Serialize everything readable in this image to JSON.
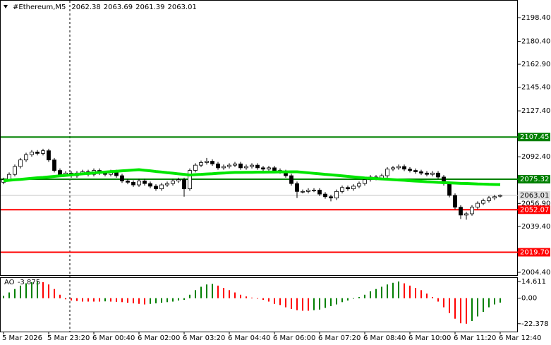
{
  "chart_data": {
    "type": "candlestick",
    "symbol": "#Ethereum,M5",
    "categories": [
      "5 Mar 2026",
      null,
      null,
      null,
      null,
      null,
      null,
      null,
      "5 Mar 23:20",
      null,
      null,
      null,
      null,
      null,
      null,
      null,
      "6 Mar 00:40",
      null,
      null,
      null,
      null,
      null,
      null,
      null,
      "6 Mar 02:00",
      null,
      null,
      null,
      null,
      null,
      null,
      null,
      "6 Mar 03:20",
      null,
      null,
      null,
      null,
      null,
      null,
      null,
      "6 Mar 04:40",
      null,
      null,
      null,
      null,
      null,
      null,
      null,
      "6 Mar 06:00",
      null,
      null,
      null,
      null,
      null,
      null,
      null,
      "6 Mar 07:20",
      null,
      null,
      null,
      null,
      null,
      null,
      null,
      "6 Mar 08:40",
      null,
      null,
      null,
      null,
      null,
      null,
      null,
      "6 Mar 10:00",
      null,
      null,
      null,
      null,
      null,
      null,
      null,
      "6 Mar 11:20",
      null,
      null,
      null,
      null,
      null,
      null,
      null,
      "6 Mar 12:40"
    ],
    "open": [
      2073,
      2075,
      2079,
      2085,
      2090,
      2094,
      2096,
      2095,
      2097,
      2090,
      2082,
      2079,
      2080,
      2078,
      2080,
      2081,
      2079,
      2082,
      2080,
      2079,
      2081,
      2078,
      2074,
      2073,
      2071,
      2074,
      2072,
      2070,
      2068,
      2071,
      2072,
      2074,
      2075,
      2068,
      2082,
      2086,
      2088,
      2089,
      2087,
      2084,
      2085,
      2086,
      2087,
      2084,
      2085,
      2086,
      2084,
      2083,
      2084,
      2082,
      2081,
      2078,
      2072,
      2066,
      2066,
      2067,
      2067,
      2064,
      2062,
      2061,
      2066,
      2069,
      2068,
      2070,
      2072,
      2075,
      2077,
      2076,
      2078,
      2083,
      2084,
      2085,
      2083,
      2082,
      2081,
      2080,
      2079,
      2080,
      2077,
      2072,
      2063,
      2054,
      2048,
      2049,
      2054,
      2057,
      2059,
      2061,
      2062.38
    ],
    "high": [
      2076.5,
      2080.5,
      2086.5,
      2091.5,
      2095.5,
      2097.5,
      2097.5,
      2098.5,
      2098.5,
      2091.5,
      2083.5,
      2081.5,
      2081.5,
      2081.5,
      2082.5,
      2082.5,
      2083.5,
      2083.5,
      2081.5,
      2082.5,
      2082.5,
      2079.5,
      2075.5,
      2074.5,
      2075.5,
      2075.5,
      2073.5,
      2071.5,
      2072.5,
      2073.5,
      2075.5,
      2076.5,
      2076.5,
      2083.5,
      2087.5,
      2089.5,
      2091.5,
      2090.5,
      2088.5,
      2086.5,
      2087.5,
      2088.5,
      2088.5,
      2086.5,
      2087.5,
      2087.5,
      2085.5,
      2085.5,
      2085.5,
      2083.5,
      2082.5,
      2079.5,
      2073.5,
      2067.5,
      2068.5,
      2068.5,
      2068.5,
      2065.5,
      2063.5,
      2067.5,
      2070.5,
      2070.5,
      2071.5,
      2073.5,
      2076.5,
      2078.5,
      2078.5,
      2079.5,
      2084.5,
      2085.5,
      2086.5,
      2086.5,
      2084.5,
      2083.5,
      2082.5,
      2081.5,
      2081.5,
      2081.5,
      2078.5,
      2073.5,
      2064.5,
      2055.5,
      2050.5,
      2055.5,
      2058.5,
      2060.5,
      2062.5,
      2063.5,
      2063.69
    ],
    "low": [
      2071.5,
      2073.5,
      2077.5,
      2083.5,
      2088.5,
      2092.5,
      2093.5,
      2093.5,
      2088.5,
      2080.5,
      2077.5,
      2077.5,
      2076.5,
      2076.5,
      2078.5,
      2077.5,
      2077.5,
      2078.5,
      2077.5,
      2077.5,
      2076.5,
      2072.5,
      2071.5,
      2069.5,
      2069.5,
      2070.5,
      2068.5,
      2066.5,
      2066.5,
      2069.5,
      2070.5,
      2072.5,
      2062,
      2066.5,
      2080.5,
      2084.5,
      2086.5,
      2085.5,
      2082.5,
      2082.5,
      2083.5,
      2084.5,
      2082.5,
      2082.5,
      2083.5,
      2082.5,
      2081.5,
      2081.5,
      2080.5,
      2079.5,
      2076.5,
      2070.5,
      2061,
      2064.5,
      2064.5,
      2065.5,
      2062.5,
      2060.5,
      2058.5,
      2059.5,
      2064.5,
      2066.5,
      2066.5,
      2068.5,
      2070.5,
      2073.5,
      2074.5,
      2074.5,
      2076.5,
      2081.5,
      2082.5,
      2081.5,
      2080.5,
      2079.5,
      2078.5,
      2077.5,
      2077.5,
      2075.5,
      2070.5,
      2061.5,
      2052.5,
      2045,
      2044.5,
      2047.5,
      2052.5,
      2055.5,
      2057.5,
      2059.5,
      2061.39
    ],
    "close": [
      2075,
      2079,
      2085,
      2090,
      2094,
      2096,
      2095,
      2097,
      2090,
      2082,
      2079,
      2080,
      2078,
      2080,
      2081,
      2079,
      2082,
      2080,
      2079,
      2081,
      2078,
      2074,
      2073,
      2071,
      2074,
      2072,
      2070,
      2068,
      2071,
      2072,
      2074,
      2075,
      2068,
      2082,
      2086,
      2088,
      2089,
      2087,
      2084,
      2085,
      2086,
      2087,
      2084,
      2085,
      2086,
      2084,
      2083,
      2084,
      2082,
      2081,
      2078,
      2072,
      2066,
      2066,
      2067,
      2067,
      2064,
      2062,
      2061,
      2066,
      2069,
      2068,
      2070,
      2072,
      2075,
      2077,
      2076,
      2078,
      2083,
      2084,
      2085,
      2083,
      2082,
      2081,
      2080,
      2079,
      2080,
      2077,
      2072,
      2063,
      2054,
      2048,
      2049,
      2054,
      2057,
      2059,
      2061,
      2062,
      2063.01
    ],
    "ma": {
      "color": "#00e600",
      "values": [
        2074.1,
        2074.5,
        2074.9,
        2075.2,
        2075.6,
        2076.0,
        2076.4,
        2076.7,
        2077.1,
        2077.5,
        2077.9,
        2078.2,
        2078.6,
        2079.0,
        2079.4,
        2079.7,
        2080.1,
        2080.5,
        2080.8,
        2081.1,
        2081.4,
        2081.7,
        2082.0,
        2082.3,
        2082.6,
        2082.1,
        2081.7,
        2081.2,
        2080.8,
        2080.3,
        2079.9,
        2079.4,
        2079.0,
        2078.5,
        2078.8,
        2079.0,
        2079.3,
        2079.5,
        2079.8,
        2080.0,
        2080.3,
        2080.5,
        2080.5,
        2080.6,
        2080.6,
        2080.7,
        2080.7,
        2080.8,
        2080.8,
        2080.9,
        2080.9,
        2081.0,
        2081.0,
        2080.6,
        2080.2,
        2079.8,
        2079.4,
        2079.0,
        2078.7,
        2078.3,
        2077.9,
        2077.5,
        2077.1,
        2076.7,
        2076.3,
        2076.0,
        2075.8,
        2075.5,
        2075.3,
        2075.0,
        2074.7,
        2074.5,
        2074.2,
        2073.9,
        2073.7,
        2073.4,
        2073.2,
        2072.9,
        2072.7,
        2072.6,
        2072.4,
        2072.2,
        2072.1,
        2071.9,
        2071.7,
        2071.6,
        2071.4,
        2071.3,
        2071.2
      ]
    },
    "levels": [
      {
        "value": 2107.45,
        "color": "#008000"
      },
      {
        "value": 2075.32,
        "color": "#008000"
      },
      {
        "value": 2052.07,
        "color": "#ff0000"
      },
      {
        "value": 2019.7,
        "label": "2019.70",
        "color": "#ff0000"
      }
    ],
    "ylim": [
      2001.7,
      2211.3
    ],
    "yticks": [
      {
        "value": 2198.4,
        "label": "2198.40"
      },
      {
        "value": 2180.4,
        "label": "2180.40"
      },
      {
        "value": 2162.9,
        "label": "2162.90"
      },
      {
        "value": 2145.4,
        "label": "2145.40"
      },
      {
        "value": 2127.4,
        "label": "2127.40"
      },
      {
        "value": 2092.4,
        "label": "2092.40"
      },
      {
        "value": 2056.9,
        "label": "2056.90"
      },
      {
        "value": 2039.4,
        "label": "2039.40"
      },
      {
        "value": 2004.4,
        "label": "2004.40"
      }
    ],
    "ao": {
      "name": "AO",
      "up_color": "#008000",
      "down_color": "#ff0000",
      "values": [
        2,
        5,
        8,
        11,
        13,
        14,
        14.5,
        14,
        12,
        8,
        3,
        -1,
        -2,
        -2.5,
        -3,
        -3,
        -3,
        -3,
        -2.8,
        -3,
        -3.2,
        -3.5,
        -4,
        -4.5,
        -5,
        -5.5,
        -5,
        -4.5,
        -4,
        -3.5,
        -3,
        -2,
        -1.5,
        3,
        7,
        10,
        12,
        12.5,
        11,
        9,
        7,
        5,
        3,
        1.5,
        0.5,
        -0.5,
        -1.5,
        -3,
        -5,
        -6,
        -8,
        -9.5,
        -10.5,
        -11,
        -11,
        -10.5,
        -10,
        -8.5,
        -7,
        -5.5,
        -3.5,
        -2,
        -0.5,
        1,
        3,
        6,
        8,
        10,
        12,
        13.5,
        14.611,
        13,
        11,
        9,
        7,
        4,
        1,
        -3,
        -8,
        -13,
        -18,
        -22,
        -22.378,
        -20,
        -16,
        -12,
        -8,
        -5.5,
        -3.875
      ],
      "ylim": [
        -29.3,
        17.7
      ],
      "yticks": [
        14.611,
        {
          "value": 0,
          "label": "0.00"
        },
        -22.378
      ]
    }
  }
}
